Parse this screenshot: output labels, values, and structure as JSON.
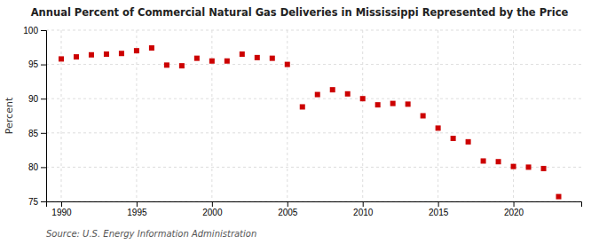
{
  "chart_data": {
    "type": "scatter",
    "title": "Annual Percent of Commercial Natural Gas Deliveries in Mississippi Represented by the Price",
    "ylabel": "Percent",
    "annotations": [
      "Source: U.S. Energy Information Administration"
    ],
    "x": [
      1990,
      1991,
      1992,
      1993,
      1994,
      1995,
      1996,
      1997,
      1998,
      1999,
      2000,
      2001,
      2002,
      2003,
      2004,
      2005,
      2006,
      2007,
      2008,
      2009,
      2010,
      2011,
      2012,
      2013,
      2014,
      2015,
      2016,
      2017,
      2018,
      2019,
      2020,
      2021,
      2022,
      2023
    ],
    "values": [
      95.8,
      96.1,
      96.4,
      96.5,
      96.6,
      97.0,
      97.4,
      94.9,
      94.8,
      95.9,
      95.5,
      95.5,
      96.5,
      96.0,
      95.9,
      95.0,
      88.8,
      90.6,
      91.3,
      90.7,
      90.0,
      89.1,
      89.3,
      89.2,
      87.5,
      85.7,
      84.2,
      83.7,
      80.9,
      80.8,
      80.1,
      80.0,
      79.8,
      75.7
    ],
    "color": "#cc0000",
    "marker": "square",
    "xlim": [
      1989.0,
      2024.5
    ],
    "ylim": [
      75,
      100
    ],
    "xticks": [
      1990,
      1995,
      2000,
      2005,
      2010,
      2015,
      2020
    ],
    "yticks": [
      75,
      80,
      85,
      90,
      95,
      100
    ],
    "grid": true
  }
}
